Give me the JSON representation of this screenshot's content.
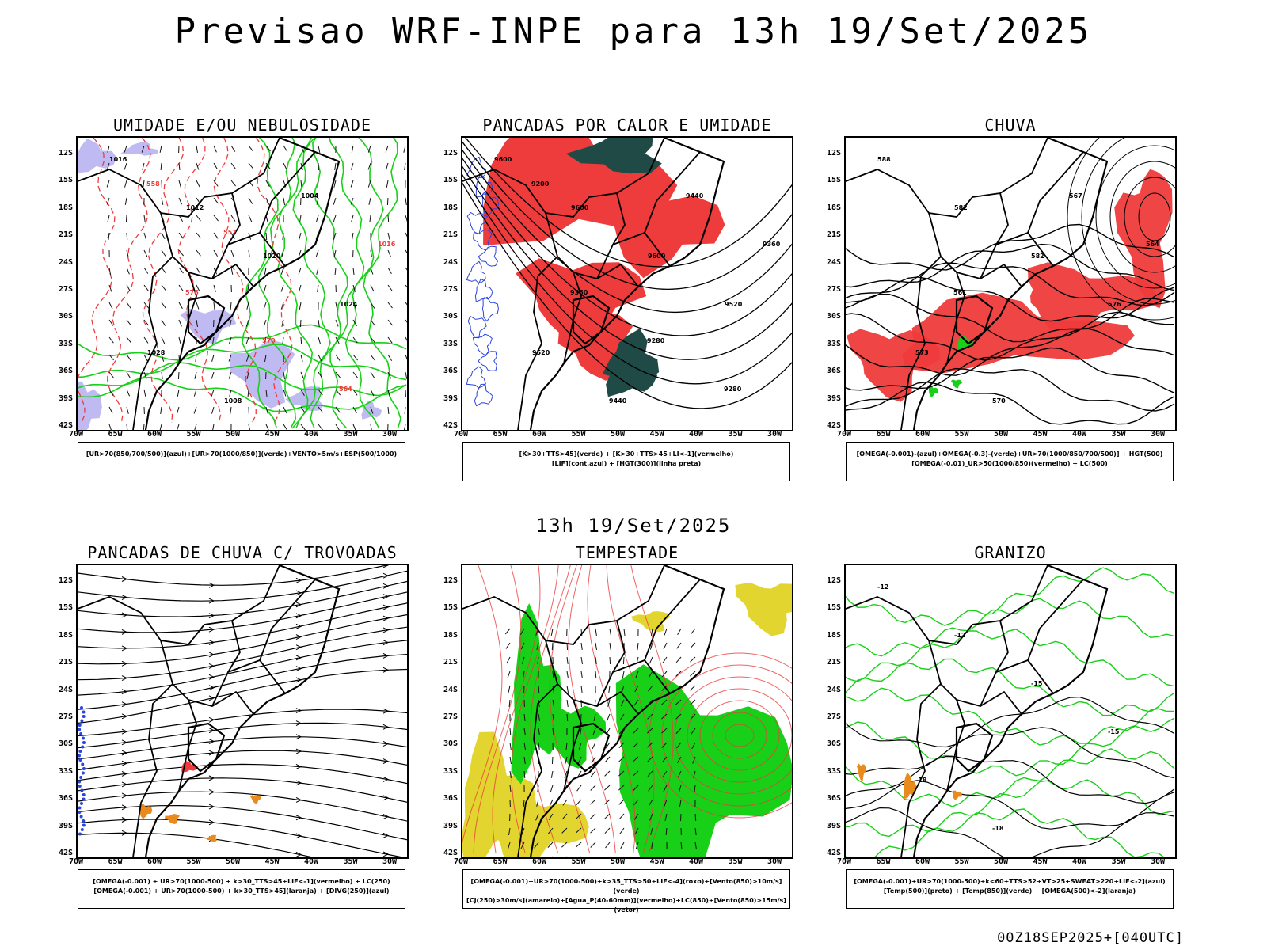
{
  "title": "Previsao WRF-INPE  para 13h 19/Set/2025",
  "mid_title": "13h 19/Set/2025",
  "footer": "00Z18SEP2025+[040UTC]",
  "axes": {
    "lat_labels": [
      "12S",
      "15S",
      "18S",
      "21S",
      "24S",
      "27S",
      "30S",
      "33S",
      "36S",
      "39S",
      "42S"
    ],
    "lon_labels": [
      "70W",
      "65W",
      "60W",
      "55W",
      "50W",
      "45W",
      "40W",
      "35W",
      "30W"
    ]
  },
  "panels": [
    {
      "title": "UMIDADE E/OU NEBULOSIDADE",
      "legend": [
        "[UR>70(850/700/500)](azul)+[UR>70(1000/850)](verde)+VENTO>5m/s+ESP(500/1000)"
      ],
      "contour_labels": [
        "1016",
        "1012",
        "1020",
        "1024",
        "1028",
        "1008",
        "1004",
        "1016",
        "576",
        "570",
        "564",
        "558",
        "552"
      ]
    },
    {
      "title": "PANCADAS POR CALOR E UMIDADE",
      "legend": [
        "[K>30+TTS>45](verde) + [K>30+TTS>45+LI<-1](vermelho)",
        "[LIF](cont.azul) + [HGT(300)](linha preta)"
      ],
      "contour_labels": [
        "9600",
        "9600",
        "9600",
        "9520",
        "9520",
        "9440",
        "9440",
        "9360",
        "9360",
        "9280",
        "9280",
        "9200"
      ]
    },
    {
      "title": "CHUVA",
      "legend": [
        "[OMEGA(-0.001)-(azul)+OMEGA(-0.3)-(verde)+UR>70(1000/850/700/500)] + HGT(500)",
        "[OMEGA(-0.01)_UR>50(1000/850)(vermelho) + LC(500)"
      ],
      "contour_labels": [
        "588",
        "582",
        "582",
        "576",
        "573",
        "570",
        "567",
        "564",
        "561"
      ]
    },
    {
      "title": "PANCADAS DE CHUVA C/ TROVOADAS",
      "legend": [
        "[OMEGA(-0.001) + UR>70(1000-500) + k>30_TTS>45+LIF<-1](vermelho) + LC(250)",
        "[OMEGA(-0.001) + UR>70(1000-500) + k>30_TTS>45](laranja) + [DIVG(250)](azul)"
      ],
      "contour_labels": []
    },
    {
      "title": "TEMPESTADE",
      "legend": [
        "[OMEGA(-0.001)+UR>70(1000-500)+k>35_TTS>50+LIF<-4](roxo)+[Vento(850)>10m/s](verde)",
        "[CJ(250)>30m/s](amarelo)+[Agua_P(40-60mm)](vermelho)+LC(850)+[Vento(850)>15m/s](vetor)"
      ],
      "contour_labels": []
    },
    {
      "title": "GRANIZO",
      "legend": [
        "[OMEGA(-0.001)+UR>70(1000-500)+k<60+TTS>52+VT>25+SWEAT>220+LIF<-2](azul)",
        "[Temp(500)](preto) + [Temp(850)](verde) + [OMEGA(500)<-2](laranja)"
      ],
      "contour_labels": [
        "-12",
        "-12",
        "-15",
        "-15",
        "-18",
        "-18"
      ]
    }
  ],
  "colors": {
    "red": "#ee3b3b",
    "green": "#18d018",
    "dark_teal": "#1f4a45",
    "blue": "#2a44e0",
    "lavender": "#b9b3f2",
    "yellow": "#e2d52f",
    "orange": "#e98a1c",
    "black": "#000000"
  }
}
